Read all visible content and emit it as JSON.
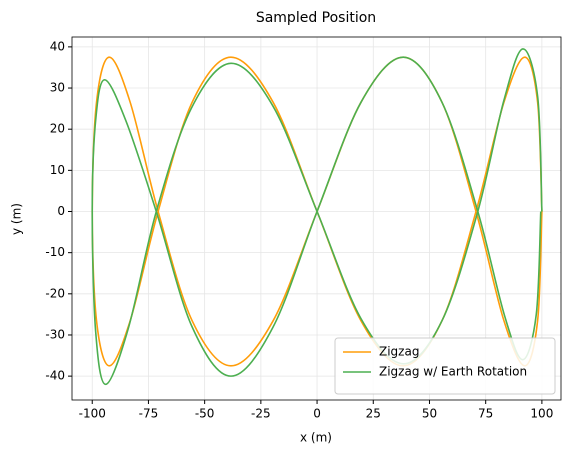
{
  "chart_data": {
    "type": "line",
    "title": "Sampled Position",
    "x_label": "x (m)",
    "y_label": "y (m)",
    "xlim": [
      -109,
      108.5
    ],
    "ylim": [
      -45.8,
      42.4
    ],
    "xticks": [
      -100,
      -75,
      -50,
      -25,
      0,
      25,
      50,
      75,
      100
    ],
    "yticks": [
      -40,
      -30,
      -20,
      -10,
      0,
      10,
      20,
      30,
      40
    ],
    "grid": true,
    "legend": "lower right",
    "series": [
      {
        "name": "Zigzag",
        "color": "#ff9d0a",
        "x": [
          100,
          98.1,
          92.4,
          83.1,
          70.7,
          55.6,
          38.3,
          19.5,
          0,
          -19.5,
          -38.3,
          -55.6,
          -70.7,
          -83.1,
          -92.4,
          -98.1,
          -100,
          -98.1,
          -92.4,
          -83.1,
          -70.7,
          -55.6,
          -38.3,
          -19.5,
          0,
          19.5,
          38.3,
          55.6,
          70.7,
          83.1,
          92.4,
          98.1,
          100
        ],
        "values": [
          0,
          26.5,
          37.5,
          26.5,
          0,
          -26.5,
          -37.5,
          -26.5,
          0,
          26.5,
          37.5,
          26.5,
          0,
          -26.5,
          -37.5,
          -26.5,
          0,
          26.5,
          37.5,
          26.5,
          0,
          -26.5,
          -37.5,
          -26.5,
          0,
          26.5,
          37.5,
          26.5,
          0,
          -26.5,
          -37.5,
          -26.5,
          0
        ]
      },
      {
        "name": "Zigzag w/ Earth Rotation",
        "color": "#4caf50",
        "x": [
          100,
          98.1,
          91.5,
          83.1,
          71.5,
          55.6,
          38.3,
          19.5,
          0,
          -19.5,
          -38.3,
          -56,
          -71.5,
          -84,
          -94,
          -98.5,
          -100,
          -98.5,
          -94.5,
          -85,
          -71.5,
          -55.6,
          -38.3,
          -19.5,
          0,
          19.5,
          38.3,
          55.6,
          71.5,
          83.5,
          91.5,
          97.5,
          99.5
        ],
        "values": [
          0,
          28,
          39.5,
          27,
          0,
          -26.5,
          -37,
          -26,
          0,
          25.5,
          36,
          25,
          0,
          -28.5,
          -42,
          -29,
          0,
          22,
          32,
          22,
          0,
          -28,
          -40,
          -28,
          0,
          26.5,
          37.5,
          26.5,
          0,
          -25.5,
          -36,
          -25,
          0
        ]
      }
    ]
  }
}
